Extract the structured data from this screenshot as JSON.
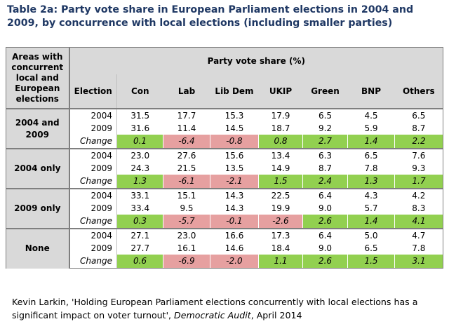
{
  "title": "Table 2a: Party vote share in European Parliament elections in 2004 and 2009, by concurrence with local elections (including smaller parties)",
  "header": {
    "areas": "Areas with concurrent local and European elections",
    "election": "Election",
    "group_title": "Party vote share (%)",
    "parties": [
      "Con",
      "Lab",
      "Lib Dem",
      "UKIP",
      "Green",
      "BNP",
      "Others"
    ]
  },
  "colors": {
    "positive": "#92d050",
    "negative": "#e6a0a0",
    "header": "#d9d9d9",
    "title": "#1f3864"
  },
  "groups": [
    {
      "label": "2004 and 2009",
      "rows": [
        {
          "election": "2004",
          "values": [
            "31.5",
            "17.7",
            "15.3",
            "17.9",
            "6.5",
            "4.5",
            "6.5"
          ]
        },
        {
          "election": "2009",
          "values": [
            "31.6",
            "11.4",
            "14.5",
            "18.7",
            "9.2",
            "5.9",
            "8.7"
          ]
        },
        {
          "election": "Change",
          "values": [
            "0.1",
            "-6.4",
            "-0.8",
            "0.8",
            "2.7",
            "1.4",
            "2.2"
          ]
        }
      ]
    },
    {
      "label": "2004 only",
      "rows": [
        {
          "election": "2004",
          "values": [
            "23.0",
            "27.6",
            "15.6",
            "13.4",
            "6.3",
            "6.5",
            "7.6"
          ]
        },
        {
          "election": "2009",
          "values": [
            "24.3",
            "21.5",
            "13.5",
            "14.9",
            "8.7",
            "7.8",
            "9.3"
          ]
        },
        {
          "election": "Change",
          "values": [
            "1.3",
            "-6.1",
            "-2.1",
            "1.5",
            "2.4",
            "1.3",
            "1.7"
          ]
        }
      ]
    },
    {
      "label": "2009 only",
      "rows": [
        {
          "election": "2004",
          "values": [
            "33.1",
            "15.1",
            "14.3",
            "22.5",
            "6.4",
            "4.3",
            "4.2"
          ]
        },
        {
          "election": "2009",
          "values": [
            "33.4",
            "9.5",
            "14.3",
            "19.9",
            "9.0",
            "5.7",
            "8.3"
          ]
        },
        {
          "election": "Change",
          "values": [
            "0.3",
            "-5.7",
            "-0.1",
            "-2.6",
            "2.6",
            "1.4",
            "4.1"
          ]
        }
      ]
    },
    {
      "label": "None",
      "rows": [
        {
          "election": "2004",
          "values": [
            "27.1",
            "23.0",
            "16.6",
            "17.3",
            "6.4",
            "5.0",
            "4.7"
          ]
        },
        {
          "election": "2009",
          "values": [
            "27.7",
            "16.1",
            "14.6",
            "18.4",
            "9.0",
            "6.5",
            "7.8"
          ]
        },
        {
          "election": "Change",
          "values": [
            "0.6",
            "-6.9",
            "-2.0",
            "1.1",
            "2.6",
            "1.5",
            "3.1"
          ]
        }
      ]
    }
  ],
  "source": {
    "prefix": "Kevin Larkin, 'Holding European Parliament elections concurrently with local elections has a significant impact on voter turnout', ",
    "publication": "Democratic Audit",
    "suffix": ", April 2014"
  }
}
